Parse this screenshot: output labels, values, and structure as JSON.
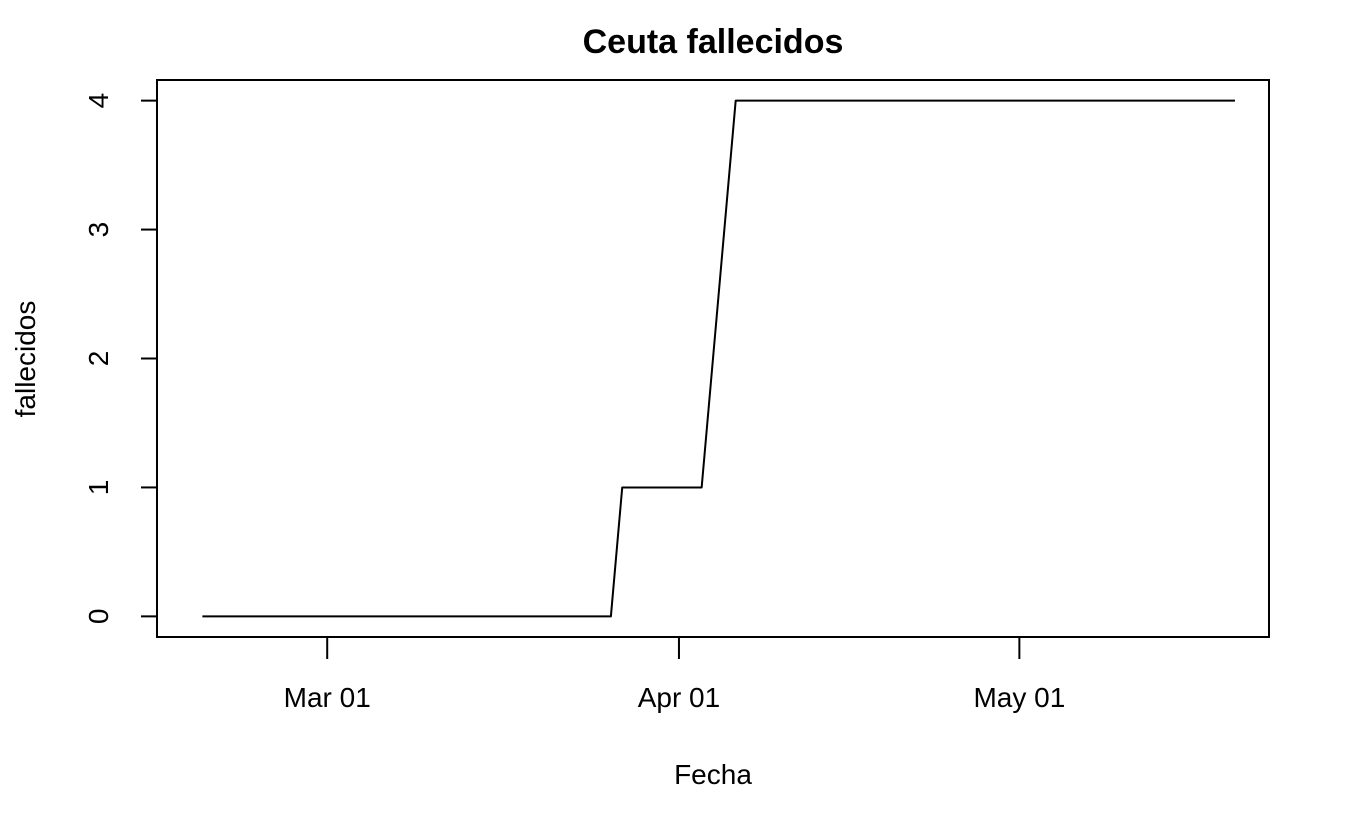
{
  "chart_data": {
    "type": "line",
    "title": "Ceuta fallecidos",
    "xlabel": "Fecha",
    "ylabel": "fallecidos",
    "x_type": "date",
    "xlim": [
      "2020-02-15",
      "2020-05-23"
    ],
    "ylim": [
      -0.16,
      4.16
    ],
    "x_ticks": [
      {
        "date": "2020-03-01",
        "label": "Mar 01"
      },
      {
        "date": "2020-04-01",
        "label": "Apr 01"
      },
      {
        "date": "2020-05-01",
        "label": "May 01"
      }
    ],
    "y_ticks": [
      0,
      1,
      2,
      3,
      4
    ],
    "grid": false,
    "legend": "none",
    "series": [
      {
        "color": "#000000",
        "points": [
          {
            "x": "2020-02-19",
            "y": 0
          },
          {
            "x": "2020-03-26",
            "y": 0
          },
          {
            "x": "2020-03-27",
            "y": 1
          },
          {
            "x": "2020-04-03",
            "y": 1
          },
          {
            "x": "2020-04-06",
            "y": 4
          },
          {
            "x": "2020-05-20",
            "y": 4
          }
        ]
      }
    ]
  }
}
